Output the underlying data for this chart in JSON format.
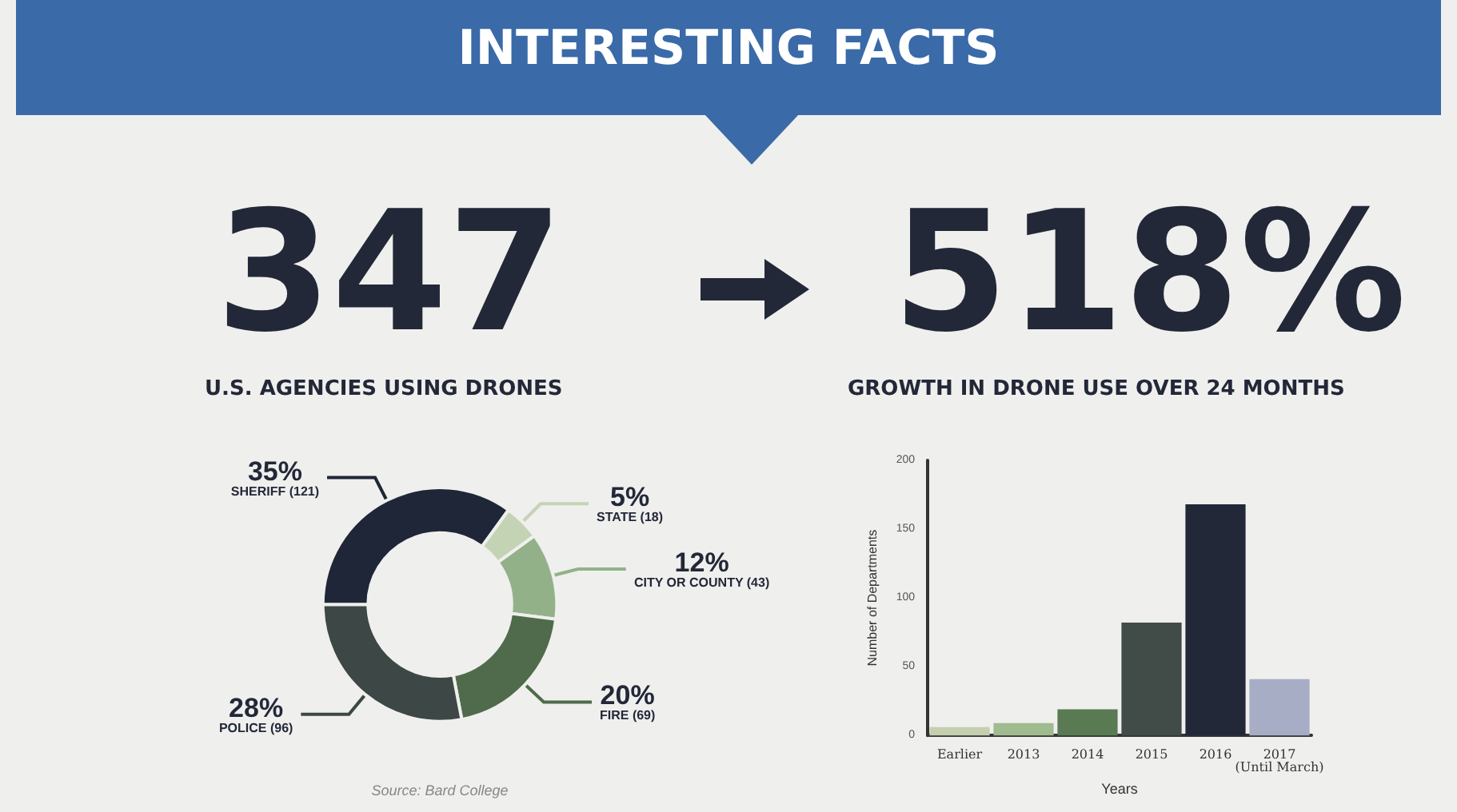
{
  "chart_data": [
    {
      "type": "other",
      "title": "INTERESTING FACTS",
      "annotations": [
        "347",
        "U.S. AGENCIES USING DRONES",
        "518%",
        "GROWTH IN DRONE USE OVER 24 MONTHS"
      ]
    },
    {
      "type": "donut",
      "categories": [
        "SHERIFF (121)",
        "STATE (18)",
        "CITY OR COUNTY (43)",
        "FIRE (69)",
        "POLICE (96)"
      ],
      "values": [
        35,
        5,
        12,
        20,
        28
      ],
      "value_labels": [
        "35%",
        "5%",
        "12%",
        "20%",
        "28%"
      ],
      "colors": [
        "#1f2638",
        "#c5d3b5",
        "#93b189",
        "#4f6b4b",
        "#3d4745"
      ],
      "annotations": [
        "Source: Bard College"
      ]
    },
    {
      "type": "bar",
      "xlabel": "Years",
      "ylabel": "Number of Departments",
      "categories": [
        "Earlier",
        "2013",
        "2014",
        "2015",
        "2016",
        "2017\n(Until March)"
      ],
      "values": [
        6,
        9,
        19,
        82,
        168,
        41
      ],
      "colors": [
        "#c3cfaf",
        "#9fbb8f",
        "#5a7a54",
        "#414b47",
        "#232838",
        "#a6adc4"
      ],
      "ylim": [
        0,
        200
      ],
      "yticks": [
        0,
        50,
        100,
        150,
        200
      ],
      "grid": false
    }
  ]
}
